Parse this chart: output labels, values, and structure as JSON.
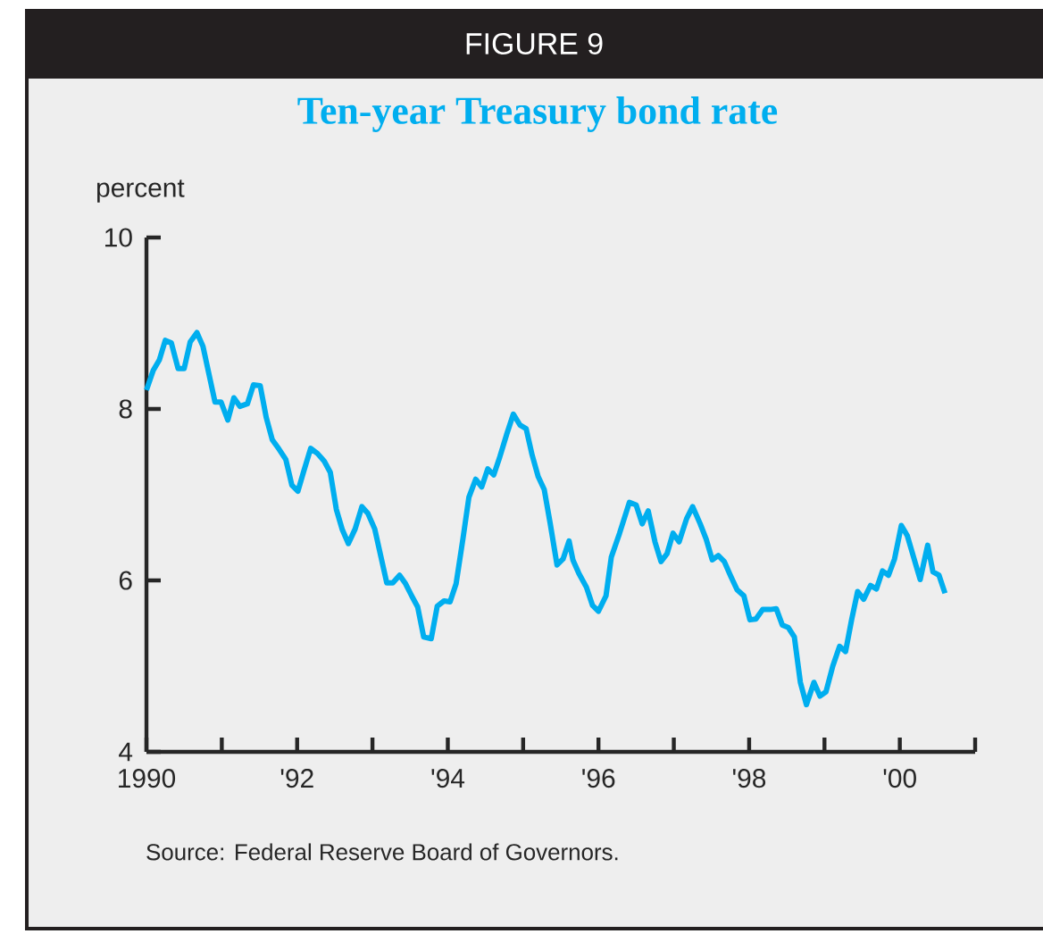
{
  "chart_data": {
    "type": "line",
    "title": "Ten-year Treasury bond rate",
    "ylabel": "percent",
    "annotations": [
      "FIGURE 9",
      "Source: Federal Reserve Board of Governors."
    ],
    "xlim": [
      1990,
      2001
    ],
    "xticks": [
      {
        "value": 1990,
        "label": "1990"
      },
      {
        "value": 1991,
        "label": null
      },
      {
        "value": 1992,
        "label": "'92"
      },
      {
        "value": 1993,
        "label": null
      },
      {
        "value": 1994,
        "label": "'94"
      },
      {
        "value": 1995,
        "label": null
      },
      {
        "value": 1996,
        "label": "'96"
      },
      {
        "value": 1997,
        "label": null
      },
      {
        "value": 1998,
        "label": "'98"
      },
      {
        "value": 1999,
        "label": null
      },
      {
        "value": 2000,
        "label": "'00"
      },
      {
        "value": 2001,
        "label": null
      }
    ],
    "ylim": [
      4,
      10
    ],
    "yticks": [
      4,
      6,
      8,
      10
    ],
    "grid": false,
    "marker": "none",
    "line_style": "solid",
    "x": [
      1990.0,
      1990.09,
      1990.17,
      1990.25,
      1990.33,
      1990.42,
      1990.5,
      1990.58,
      1990.67,
      1990.75,
      1990.91,
      1990.99,
      1991.08,
      1991.16,
      1991.24,
      1991.34,
      1991.42,
      1991.51,
      1991.59,
      1991.67,
      1991.76,
      1991.85,
      1991.93,
      1992.01,
      1992.09,
      1992.18,
      1992.27,
      1992.36,
      1992.44,
      1992.52,
      1992.6,
      1992.68,
      1992.77,
      1992.86,
      1992.94,
      1993.03,
      1993.19,
      1993.27,
      1993.36,
      1993.44,
      1993.52,
      1993.6,
      1993.68,
      1993.78,
      1993.86,
      1993.95,
      1994.03,
      1994.11,
      1994.2,
      1994.28,
      1994.37,
      1994.45,
      1994.53,
      1994.61,
      1994.69,
      1994.78,
      1994.87,
      1994.96,
      1995.04,
      1995.12,
      1995.2,
      1995.28,
      1995.36,
      1995.45,
      1995.53,
      1995.61,
      1995.66,
      1995.74,
      1995.84,
      1995.92,
      1996.0,
      1996.1,
      1996.17,
      1996.28,
      1996.41,
      1996.5,
      1996.58,
      1996.66,
      1996.75,
      1996.83,
      1996.91,
      1996.99,
      1997.07,
      1997.17,
      1997.25,
      1997.35,
      1997.43,
      1997.51,
      1997.59,
      1997.67,
      1997.75,
      1997.84,
      1997.93,
      1998.01,
      1998.09,
      1998.18,
      1998.28,
      1998.36,
      1998.44,
      1998.52,
      1998.6,
      1998.68,
      1998.76,
      1998.86,
      1998.94,
      1999.02,
      1999.11,
      1999.2,
      1999.28,
      1999.36,
      1999.44,
      1999.52,
      1999.61,
      1999.69,
      1999.77,
      1999.85,
      1999.93,
      2000.02,
      2000.1,
      2000.27,
      2000.37,
      2000.44,
      2000.52,
      2000.6
    ],
    "series": [
      {
        "color": "#00aeef",
        "values": [
          8.22,
          8.45,
          8.57,
          8.8,
          8.77,
          8.47,
          8.47,
          8.78,
          8.89,
          8.73,
          8.08,
          8.08,
          7.87,
          8.13,
          8.03,
          8.06,
          8.28,
          8.27,
          7.9,
          7.64,
          7.53,
          7.41,
          7.11,
          7.04,
          7.28,
          7.54,
          7.48,
          7.39,
          7.26,
          6.83,
          6.59,
          6.43,
          6.6,
          6.86,
          6.78,
          6.6,
          5.97,
          5.97,
          6.06,
          5.96,
          5.82,
          5.69,
          5.34,
          5.32,
          5.7,
          5.76,
          5.75,
          5.96,
          6.48,
          6.97,
          7.18,
          7.09,
          7.3,
          7.23,
          7.44,
          7.7,
          7.94,
          7.81,
          7.77,
          7.46,
          7.21,
          7.06,
          6.66,
          6.18,
          6.25,
          6.46,
          6.24,
          6.08,
          5.92,
          5.71,
          5.64,
          5.82,
          6.27,
          6.55,
          6.91,
          6.88,
          6.66,
          6.81,
          6.45,
          6.22,
          6.31,
          6.55,
          6.45,
          6.72,
          6.86,
          6.66,
          6.48,
          6.24,
          6.29,
          6.22,
          6.06,
          5.89,
          5.82,
          5.54,
          5.55,
          5.66,
          5.66,
          5.67,
          5.48,
          5.45,
          5.34,
          4.81,
          4.55,
          4.81,
          4.65,
          4.7,
          5.0,
          5.23,
          5.17,
          5.54,
          5.87,
          5.78,
          5.94,
          5.9,
          6.11,
          6.06,
          6.25,
          6.64,
          6.52,
          6.01,
          6.41,
          6.1,
          6.06,
          5.85
        ]
      }
    ]
  }
}
